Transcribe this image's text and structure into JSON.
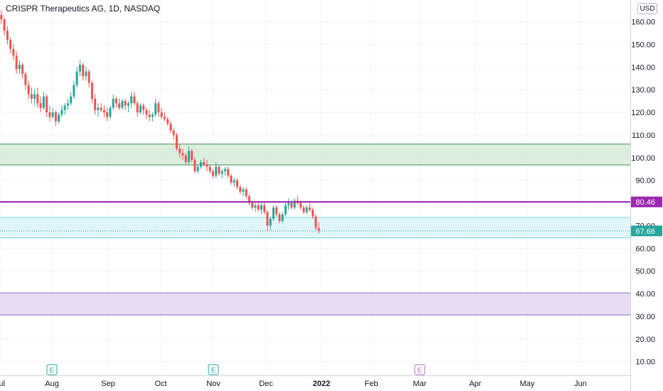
{
  "chart_data": {
    "type": "candlestick",
    "title": "CRISPR Therapeutics AG, 1D, NASDAQ",
    "currency": "USD",
    "y_ticks": [
      10,
      20,
      30,
      40,
      50,
      60,
      70,
      80,
      90,
      100,
      110,
      120,
      130,
      140,
      150,
      160
    ],
    "y_tick_labels": [
      "10.00",
      "20.00",
      "30.00",
      "40.00",
      "50.00",
      "60.00",
      "70.00",
      "80.00",
      "90.00",
      "100.00",
      "110.00",
      "120.00",
      "130.00",
      "140.00",
      "150.00",
      "160.00"
    ],
    "ylim": [
      6,
      172
    ],
    "x_tick_labels": [
      "Jul",
      "Aug",
      "Sep",
      "Oct",
      "Nov",
      "Dec",
      "2022",
      "Feb",
      "Mar",
      "Apr",
      "May",
      "Jun"
    ],
    "price_labels": {
      "resistance": "80.46",
      "last": "67.66"
    },
    "horizontal_line": {
      "value": 80.46,
      "color": "#9c27b0"
    },
    "last_price": {
      "value": 67.66,
      "color": "#26a69a"
    },
    "zones": [
      {
        "low": 96.8,
        "high": 106.0,
        "fill": "#d6ebd8",
        "stroke": "#3f8f5a"
      },
      {
        "low": 64.6,
        "high": 73.6,
        "fill": "#dcf4f8",
        "stroke": "#76d6e6"
      },
      {
        "low": 30.6,
        "high": 40.3,
        "fill": "#e2d7f1",
        "stroke": "#8e6bc9"
      }
    ],
    "earnings_markers": [
      {
        "label": "E",
        "month": "Aug",
        "color": "#26a69a"
      },
      {
        "label": "E",
        "month": "Nov",
        "color": "#26a69a"
      },
      {
        "label": "E",
        "month": "Mar",
        "color": "#ba68c8"
      }
    ],
    "up_color": "#26a69a",
    "down_color": "#ef5350",
    "candles": [
      [
        163.0,
        165.0,
        159.0,
        161.0
      ],
      [
        161.0,
        162.0,
        154.0,
        156.0
      ],
      [
        156.0,
        158.0,
        150.0,
        152.0
      ],
      [
        152.0,
        153.0,
        146.0,
        148.0
      ],
      [
        148.0,
        150.0,
        143.0,
        145.0
      ],
      [
        145.0,
        147.0,
        137.0,
        139.0
      ],
      [
        139.0,
        143.0,
        137.0,
        141.0
      ],
      [
        141.0,
        142.0,
        135.0,
        137.0
      ],
      [
        137.0,
        138.0,
        130.0,
        132.0
      ],
      [
        132.0,
        134.0,
        126.0,
        128.0
      ],
      [
        128.0,
        131.0,
        124.0,
        126.0
      ],
      [
        126.0,
        130.0,
        123.0,
        128.0
      ],
      [
        128.0,
        131.0,
        122.0,
        124.0
      ],
      [
        124.0,
        127.0,
        120.0,
        122.0
      ],
      [
        122.0,
        129.0,
        121.0,
        127.0
      ],
      [
        127.0,
        128.0,
        118.0,
        120.0
      ],
      [
        120.0,
        123.0,
        116.0,
        118.0
      ],
      [
        118.0,
        122.0,
        117.0,
        120.0
      ],
      [
        120.0,
        121.0,
        114.0,
        116.0
      ],
      [
        116.0,
        120.0,
        115.0,
        119.0
      ],
      [
        119.0,
        123.0,
        118.0,
        121.0
      ],
      [
        121.0,
        124.0,
        119.0,
        123.0
      ],
      [
        123.0,
        126.0,
        121.0,
        124.0
      ],
      [
        124.0,
        129.0,
        123.0,
        127.0
      ],
      [
        127.0,
        134.0,
        126.0,
        132.0
      ],
      [
        132.0,
        140.0,
        131.0,
        138.0
      ],
      [
        138.0,
        143.0,
        136.0,
        141.0
      ],
      [
        141.0,
        142.0,
        134.0,
        136.0
      ],
      [
        136.0,
        140.0,
        134.0,
        138.0
      ],
      [
        138.0,
        139.0,
        131.0,
        133.0
      ],
      [
        133.0,
        134.0,
        124.0,
        126.0
      ],
      [
        126.0,
        128.0,
        119.0,
        121.0
      ],
      [
        121.0,
        124.0,
        118.0,
        122.0
      ],
      [
        122.0,
        124.0,
        120.0,
        121.0
      ],
      [
        121.0,
        123.0,
        118.0,
        120.0
      ],
      [
        120.0,
        122.0,
        116.0,
        118.0
      ],
      [
        118.0,
        123.0,
        117.0,
        122.0
      ],
      [
        122.0,
        128.0,
        121.0,
        126.0
      ],
      [
        126.0,
        127.0,
        122.0,
        124.0
      ],
      [
        124.0,
        126.0,
        121.0,
        122.0
      ],
      [
        122.0,
        126.0,
        121.0,
        125.0
      ],
      [
        125.0,
        126.0,
        121.0,
        123.0
      ],
      [
        123.0,
        125.0,
        120.0,
        124.0
      ],
      [
        124.0,
        129.0,
        122.0,
        127.0
      ],
      [
        127.0,
        129.0,
        123.0,
        124.0
      ],
      [
        124.0,
        125.0,
        118.0,
        120.0
      ],
      [
        120.0,
        124.0,
        119.0,
        123.0
      ],
      [
        123.0,
        124.0,
        119.0,
        121.0
      ],
      [
        121.0,
        122.0,
        117.0,
        119.0
      ],
      [
        119.0,
        121.0,
        116.0,
        118.0
      ],
      [
        118.0,
        120.0,
        116.0,
        119.0
      ],
      [
        119.0,
        126.0,
        118.0,
        124.0
      ],
      [
        124.0,
        125.0,
        118.0,
        120.0
      ],
      [
        120.0,
        122.0,
        117.0,
        118.0
      ],
      [
        118.0,
        120.0,
        116.0,
        117.0
      ],
      [
        117.0,
        118.0,
        114.0,
        115.0
      ],
      [
        115.0,
        116.0,
        111.0,
        112.0
      ],
      [
        112.0,
        113.0,
        108.0,
        110.0
      ],
      [
        110.0,
        111.0,
        103.0,
        104.0
      ],
      [
        104.0,
        106.0,
        100.0,
        102.0
      ],
      [
        102.0,
        104.0,
        99.0,
        101.0
      ],
      [
        101.0,
        102.0,
        97.0,
        98.0
      ],
      [
        98.0,
        105.0,
        97.0,
        103.0
      ],
      [
        103.0,
        104.0,
        98.0,
        99.0
      ],
      [
        99.0,
        100.0,
        93.0,
        94.0
      ],
      [
        94.0,
        97.0,
        93.0,
        96.0
      ],
      [
        96.0,
        99.0,
        95.0,
        98.0
      ],
      [
        98.0,
        100.0,
        96.0,
        97.0
      ],
      [
        97.0,
        99.0,
        94.0,
        96.0
      ],
      [
        96.0,
        97.0,
        93.0,
        94.0
      ],
      [
        94.0,
        95.0,
        91.0,
        92.0
      ],
      [
        92.0,
        98.0,
        91.0,
        96.0
      ],
      [
        96.0,
        97.0,
        92.0,
        93.0
      ],
      [
        93.0,
        95.0,
        91.0,
        94.0
      ],
      [
        94.0,
        96.0,
        92.0,
        95.0
      ],
      [
        95.0,
        96.0,
        91.0,
        92.0
      ],
      [
        92.0,
        93.0,
        88.0,
        89.0
      ],
      [
        89.0,
        91.0,
        87.0,
        90.0
      ],
      [
        90.0,
        91.0,
        86.0,
        87.0
      ],
      [
        87.0,
        88.0,
        84.0,
        85.0
      ],
      [
        85.0,
        87.0,
        83.0,
        86.0
      ],
      [
        86.0,
        87.0,
        82.0,
        83.0
      ],
      [
        83.0,
        84.0,
        79.0,
        80.0
      ],
      [
        80.0,
        81.0,
        77.0,
        78.0
      ],
      [
        78.0,
        80.0,
        76.0,
        79.0
      ],
      [
        79.0,
        81.0,
        76.0,
        77.0
      ],
      [
        77.0,
        80.0,
        75.0,
        79.0
      ],
      [
        79.0,
        80.0,
        75.0,
        76.0
      ],
      [
        76.0,
        77.0,
        67.5,
        70.0
      ],
      [
        70.0,
        74.0,
        68.0,
        73.0
      ],
      [
        73.0,
        79.0,
        72.0,
        78.0
      ],
      [
        78.0,
        79.0,
        74.0,
        75.0
      ],
      [
        75.0,
        76.0,
        71.0,
        72.0
      ],
      [
        72.0,
        76.0,
        71.0,
        75.0
      ],
      [
        75.0,
        80.0,
        74.0,
        79.0
      ],
      [
        79.0,
        82.0,
        77.0,
        80.0
      ],
      [
        80.0,
        81.0,
        77.0,
        78.0
      ],
      [
        78.0,
        82.0,
        77.0,
        81.0
      ],
      [
        81.0,
        83.0,
        79.0,
        80.0
      ],
      [
        80.0,
        81.0,
        77.0,
        78.0
      ],
      [
        78.0,
        79.0,
        75.0,
        76.0
      ],
      [
        76.0,
        79.0,
        75.0,
        78.0
      ],
      [
        78.0,
        80.0,
        76.0,
        77.0
      ],
      [
        77.0,
        78.0,
        73.0,
        74.0
      ],
      [
        74.0,
        75.0,
        68.0,
        69.0
      ],
      [
        69.0,
        71.5,
        66.5,
        67.7
      ]
    ]
  }
}
